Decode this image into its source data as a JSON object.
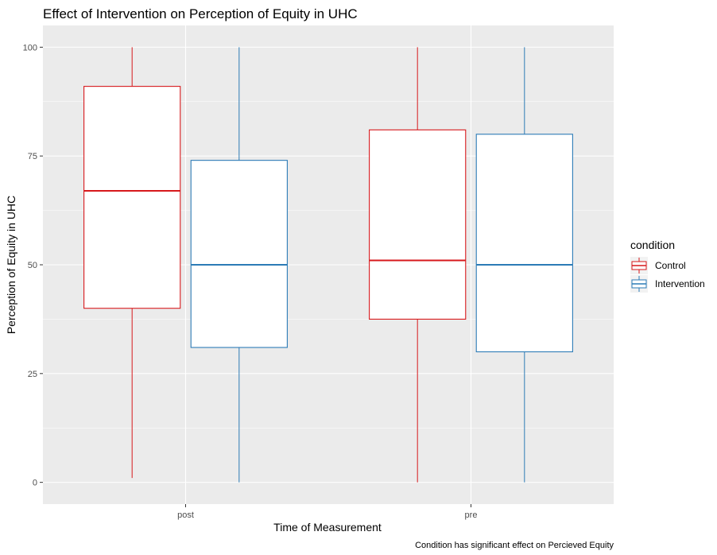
{
  "chart_data": {
    "type": "boxplot",
    "title": "Effect of Intervention on Perception of Equity in UHC",
    "xlabel": "Time of Measurement",
    "ylabel": "Perception of Equity in UHC",
    "caption": "Condition has significant effect on Percieved Equity",
    "categories": [
      "post",
      "pre"
    ],
    "ylim": [
      -5,
      105
    ],
    "yticks": [
      0,
      25,
      50,
      75,
      100
    ],
    "grid": true,
    "legend": {
      "title": "condition",
      "placement": "right"
    },
    "series": [
      {
        "name": "Control",
        "color": "#d7191c",
        "boxes": [
          {
            "category": "post",
            "min": 1,
            "q1": 40,
            "median": 67,
            "q3": 91,
            "max": 100
          },
          {
            "category": "pre",
            "min": 0,
            "q1": 37.5,
            "median": 51,
            "q3": 81,
            "max": 100
          }
        ]
      },
      {
        "name": "Intervention",
        "color": "#2c7bb6",
        "boxes": [
          {
            "category": "post",
            "min": 0,
            "q1": 31,
            "median": 50,
            "q3": 74,
            "max": 100
          },
          {
            "category": "pre",
            "min": 0,
            "q1": 30,
            "median": 50,
            "q3": 80,
            "max": 100
          }
        ]
      }
    ]
  }
}
